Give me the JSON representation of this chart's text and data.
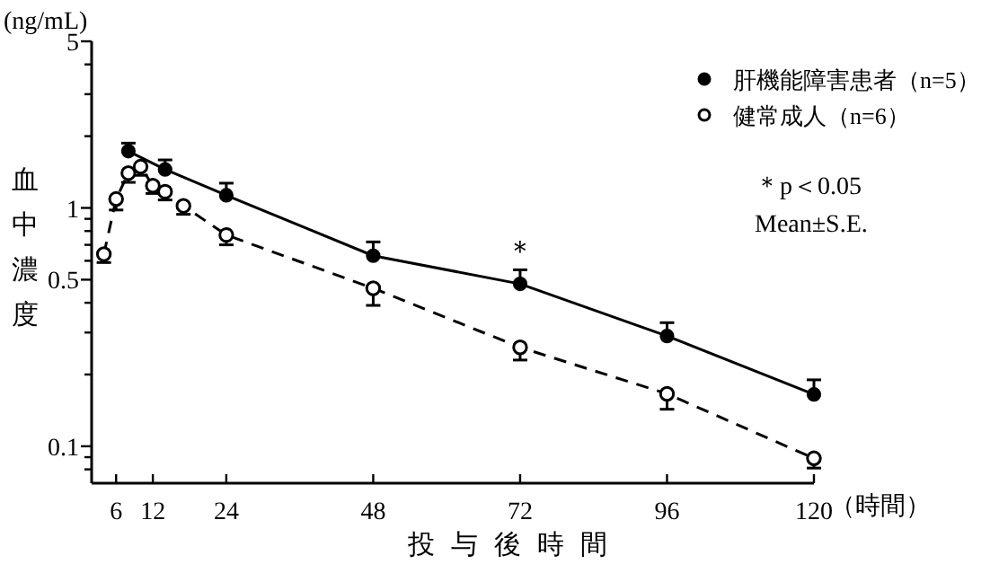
{
  "chart_data": {
    "type": "line",
    "ylabel": "血中濃度",
    "xlabel": "投与後時間",
    "annotations": [
      "(ng/mL)",
      "（時間）",
      {
        "text": "＊",
        "x": 72,
        "y": 0.6
      },
      "＊p＜0.05",
      "Mean±S.E."
    ],
    "xlim": [
      2,
      120
    ],
    "xticks": [
      6,
      12,
      24,
      48,
      72,
      96,
      120
    ],
    "ylim": [
      0.07,
      5
    ],
    "yticks": [
      {
        "value": 0.08,
        "label": null
      },
      {
        "value": 0.09,
        "label": null
      },
      0.1,
      {
        "value": 0.2,
        "label": null
      },
      {
        "value": 0.3,
        "label": null
      },
      {
        "value": 0.4,
        "label": null
      },
      0.5,
      {
        "value": 0.6,
        "label": null
      },
      {
        "value": 0.7,
        "label": null
      },
      {
        "value": 0.8,
        "label": null
      },
      {
        "value": 0.9,
        "label": null
      },
      1,
      {
        "value": 2,
        "label": null
      },
      {
        "value": 3,
        "label": null
      },
      {
        "value": 4,
        "label": null
      },
      5
    ],
    "log": true,
    "grid": false,
    "legend": "top right",
    "series": [
      {
        "name": "肝機能障害患者（n=5）",
        "color": "#000000",
        "marker": "circle",
        "line_style": "solid",
        "x": [
          8,
          14,
          24,
          48,
          72,
          96,
          120
        ],
        "values": [
          1.73,
          1.45,
          1.13,
          0.63,
          0.48,
          0.29,
          0.165
        ],
        "errors": [
          [
            1.73,
            1.87
          ],
          [
            1.45,
            1.59
          ],
          [
            1.13,
            1.27
          ],
          [
            0.63,
            0.72
          ],
          [
            0.48,
            0.55
          ],
          [
            0.29,
            0.33
          ],
          [
            0.165,
            0.19
          ]
        ]
      },
      {
        "name": "健常成人（n=6）",
        "color": "#000000",
        "marker": "open circle",
        "line_style": "dashed",
        "x": [
          4,
          6,
          8,
          10,
          12,
          14,
          17,
          24,
          48,
          72,
          96,
          120
        ],
        "values": [
          0.64,
          1.09,
          1.4,
          1.49,
          1.24,
          1.17,
          1.02,
          0.77,
          0.46,
          0.26,
          0.166,
          0.089
        ],
        "errors": [
          [
            0.59,
            0.64
          ],
          [
            0.98,
            1.09
          ],
          [
            1.28,
            1.4
          ],
          [
            1.37,
            1.49
          ],
          [
            1.15,
            1.24
          ],
          [
            1.08,
            1.17
          ],
          [
            0.94,
            1.02
          ],
          [
            0.7,
            0.77
          ],
          [
            0.39,
            0.46
          ],
          [
            0.23,
            0.26
          ],
          [
            0.143,
            0.166
          ],
          [
            0.081,
            0.089
          ]
        ]
      }
    ]
  }
}
